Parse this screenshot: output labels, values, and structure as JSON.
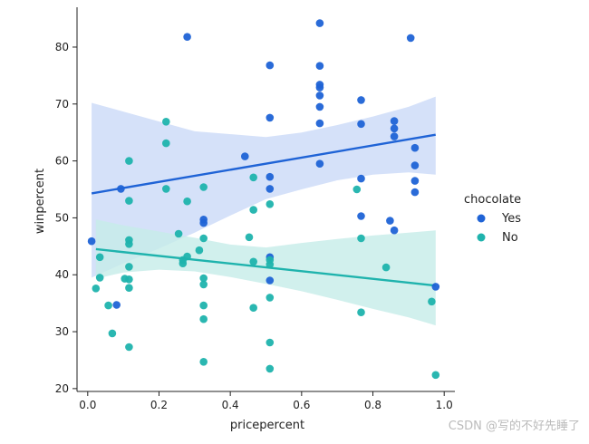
{
  "colors": {
    "yes": "#1f63d6",
    "no": "#1fb3ad",
    "yes_band": "#cbd9f7",
    "no_band": "#c6ece9",
    "axis": "#222222"
  },
  "watermark": "CSDN @写的不好先睡了",
  "chart_data": {
    "type": "scatter",
    "xlabel": "pricepercent",
    "ylabel": "winpercent",
    "xlim": [
      -0.03,
      1.03
    ],
    "ylim": [
      19.5,
      87
    ],
    "xticks": [
      "0.0",
      "0.2",
      "0.4",
      "0.6",
      "0.8",
      "1.0"
    ],
    "yticks": [
      "20",
      "30",
      "40",
      "50",
      "60",
      "70",
      "80"
    ],
    "grid": false,
    "legend": {
      "title": "chocolate",
      "position": "right"
    },
    "series": [
      {
        "name": "Yes",
        "color": "#1f63d6",
        "points": [
          [
            0.011,
            45.9
          ],
          [
            0.093,
            55.1
          ],
          [
            0.081,
            34.7
          ],
          [
            0.279,
            81.8
          ],
          [
            0.325,
            49.7
          ],
          [
            0.325,
            49.1
          ],
          [
            0.441,
            60.8
          ],
          [
            0.511,
            76.8
          ],
          [
            0.511,
            67.6
          ],
          [
            0.511,
            57.2
          ],
          [
            0.511,
            55.1
          ],
          [
            0.511,
            43.1
          ],
          [
            0.511,
            39.0
          ],
          [
            0.651,
            84.2
          ],
          [
            0.651,
            76.7
          ],
          [
            0.651,
            73.4
          ],
          [
            0.651,
            72.9
          ],
          [
            0.651,
            71.5
          ],
          [
            0.651,
            69.5
          ],
          [
            0.651,
            66.6
          ],
          [
            0.651,
            59.5
          ],
          [
            0.767,
            70.7
          ],
          [
            0.767,
            66.5
          ],
          [
            0.767,
            56.9
          ],
          [
            0.767,
            50.3
          ],
          [
            0.848,
            49.5
          ],
          [
            0.86,
            47.8
          ],
          [
            0.86,
            67.0
          ],
          [
            0.86,
            65.7
          ],
          [
            0.86,
            64.3
          ],
          [
            0.906,
            81.6
          ],
          [
            0.918,
            62.3
          ],
          [
            0.918,
            59.2
          ],
          [
            0.918,
            56.5
          ],
          [
            0.918,
            54.5
          ],
          [
            0.976,
            37.9
          ]
        ],
        "fit": {
          "x": [
            0.011,
            0.976
          ],
          "y": [
            54.3,
            64.6
          ]
        },
        "ci_upper": [
          [
            0.011,
            70.2
          ],
          [
            0.3,
            65.2
          ],
          [
            0.5,
            64.2
          ],
          [
            0.6,
            65.0
          ],
          [
            0.7,
            66.3
          ],
          [
            0.8,
            67.8
          ],
          [
            0.9,
            69.5
          ],
          [
            0.976,
            71.3
          ]
        ],
        "ci_lower": [
          [
            0.976,
            57.6
          ],
          [
            0.9,
            58.0
          ],
          [
            0.8,
            57.6
          ],
          [
            0.7,
            56.6
          ],
          [
            0.6,
            55.0
          ],
          [
            0.5,
            53.3
          ],
          [
            0.4,
            50.4
          ],
          [
            0.3,
            47.4
          ],
          [
            0.2,
            44.6
          ],
          [
            0.1,
            42.0
          ],
          [
            0.011,
            39.5
          ]
        ]
      },
      {
        "name": "No",
        "color": "#1fb3ad",
        "points": [
          [
            0.023,
            37.6
          ],
          [
            0.034,
            43.1
          ],
          [
            0.034,
            39.5
          ],
          [
            0.058,
            34.6
          ],
          [
            0.069,
            29.7
          ],
          [
            0.116,
            60.0
          ],
          [
            0.116,
            53.0
          ],
          [
            0.116,
            46.1
          ],
          [
            0.116,
            45.4
          ],
          [
            0.116,
            41.4
          ],
          [
            0.116,
            39.2
          ],
          [
            0.116,
            37.7
          ],
          [
            0.116,
            27.3
          ],
          [
            0.104,
            39.3
          ],
          [
            0.22,
            66.9
          ],
          [
            0.22,
            63.1
          ],
          [
            0.22,
            55.1
          ],
          [
            0.255,
            47.2
          ],
          [
            0.267,
            42.0
          ],
          [
            0.267,
            42.6
          ],
          [
            0.279,
            43.2
          ],
          [
            0.279,
            52.9
          ],
          [
            0.313,
            44.3
          ],
          [
            0.325,
            55.4
          ],
          [
            0.325,
            46.4
          ],
          [
            0.325,
            39.4
          ],
          [
            0.325,
            38.3
          ],
          [
            0.325,
            34.6
          ],
          [
            0.325,
            32.2
          ],
          [
            0.325,
            24.7
          ],
          [
            0.453,
            46.6
          ],
          [
            0.465,
            57.1
          ],
          [
            0.465,
            51.4
          ],
          [
            0.465,
            42.3
          ],
          [
            0.465,
            34.2
          ],
          [
            0.511,
            52.4
          ],
          [
            0.511,
            42.6
          ],
          [
            0.511,
            41.8
          ],
          [
            0.511,
            36.0
          ],
          [
            0.511,
            28.1
          ],
          [
            0.511,
            23.5
          ],
          [
            0.755,
            55.0
          ],
          [
            0.767,
            46.4
          ],
          [
            0.767,
            33.4
          ],
          [
            0.837,
            41.3
          ],
          [
            0.965,
            35.3
          ],
          [
            0.976,
            22.4
          ]
        ],
        "fit": {
          "x": [
            0.023,
            0.976
          ],
          "y": [
            44.5,
            38.1
          ]
        },
        "ci_upper": [
          [
            0.023,
            49.7
          ],
          [
            0.1,
            48.7
          ],
          [
            0.2,
            47.6
          ],
          [
            0.3,
            46.5
          ],
          [
            0.4,
            45.3
          ],
          [
            0.5,
            44.8
          ],
          [
            0.6,
            45.6
          ],
          [
            0.7,
            46.3
          ],
          [
            0.8,
            46.9
          ],
          [
            0.9,
            47.4
          ],
          [
            0.976,
            47.8
          ]
        ],
        "ci_lower": [
          [
            0.976,
            31.1
          ],
          [
            0.9,
            32.5
          ],
          [
            0.8,
            34.0
          ],
          [
            0.7,
            35.6
          ],
          [
            0.6,
            37.1
          ],
          [
            0.5,
            38.4
          ],
          [
            0.4,
            39.6
          ],
          [
            0.3,
            40.6
          ],
          [
            0.2,
            40.9
          ],
          [
            0.1,
            40.4
          ],
          [
            0.023,
            39.3
          ]
        ]
      }
    ]
  }
}
